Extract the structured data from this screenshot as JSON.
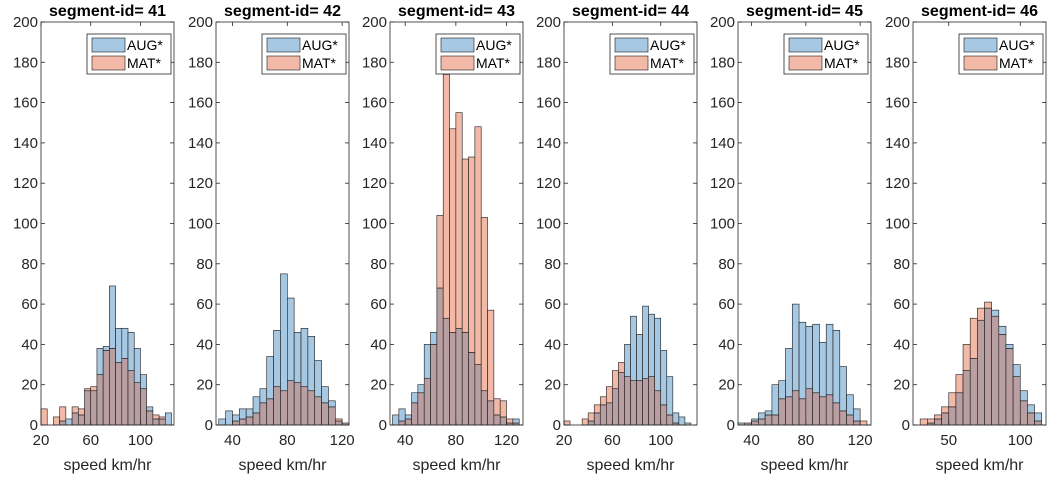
{
  "figure": {
    "colors": {
      "aug": "#a6c8e3",
      "mat": "#f2b9a6",
      "overlap": "#b99ea2",
      "edge": "#1a1a1a",
      "axis": "#262626"
    }
  },
  "chart_data": [
    {
      "type": "bar",
      "title": "segment-id= 41",
      "xlabel": "speed km/hr",
      "ylabel": "",
      "xlim": [
        20,
        127
      ],
      "ylim": [
        0,
        200
      ],
      "xticks": [
        20,
        60,
        100
      ],
      "yticks": [
        0,
        20,
        40,
        60,
        80,
        100,
        120,
        140,
        160,
        180,
        200
      ],
      "legend": "top-right",
      "bin_edges": [
        20,
        25,
        30,
        35,
        40,
        45,
        50,
        55,
        60,
        65,
        70,
        75,
        80,
        85,
        90,
        95,
        100,
        105,
        110,
        115,
        120,
        125
      ],
      "series": [
        {
          "name": "AUG*",
          "values": [
            0,
            0,
            0,
            2,
            3,
            6,
            5,
            17,
            17,
            38,
            39,
            69,
            48,
            48,
            46,
            38,
            25,
            9,
            3,
            3,
            6
          ]
        },
        {
          "name": "MAT*",
          "values": [
            8,
            0,
            4,
            9,
            0,
            9,
            8,
            18,
            19,
            25,
            37,
            38,
            31,
            33,
            27,
            21,
            18,
            7,
            5,
            4,
            0
          ]
        }
      ]
    },
    {
      "type": "bar",
      "title": "segment-id= 42",
      "xlabel": "speed km/hr",
      "ylabel": "",
      "xlim": [
        28,
        125
      ],
      "ylim": [
        0,
        200
      ],
      "xticks": [
        40,
        80,
        120
      ],
      "yticks": [
        0,
        20,
        40,
        60,
        80,
        100,
        120,
        140,
        160,
        180,
        200
      ],
      "legend": "top-right",
      "bin_edges": [
        30,
        35,
        40,
        45,
        50,
        55,
        60,
        65,
        70,
        75,
        80,
        85,
        90,
        95,
        100,
        105,
        110,
        115,
        120,
        125
      ],
      "series": [
        {
          "name": "AUG*",
          "values": [
            3,
            7,
            5,
            8,
            8,
            14,
            18,
            34,
            47,
            75,
            63,
            46,
            48,
            44,
            32,
            19,
            12,
            2,
            1
          ]
        },
        {
          "name": "MAT*",
          "values": [
            0,
            0,
            2,
            3,
            4,
            6,
            11,
            13,
            19,
            17,
            22,
            21,
            19,
            17,
            14,
            11,
            9,
            3,
            1
          ]
        }
      ]
    },
    {
      "type": "bar",
      "title": "segment-id= 43",
      "xlabel": "speed km/hr",
      "ylabel": "",
      "xlim": [
        28,
        133
      ],
      "ylim": [
        0,
        200
      ],
      "xticks": [
        40,
        80,
        120
      ],
      "yticks": [
        0,
        20,
        40,
        60,
        80,
        100,
        120,
        140,
        160,
        180,
        200
      ],
      "legend": "top-right",
      "bin_edges": [
        30,
        35,
        40,
        45,
        50,
        55,
        60,
        65,
        70,
        75,
        80,
        85,
        90,
        95,
        100,
        105,
        110,
        115,
        120,
        125,
        130
      ],
      "series": [
        {
          "name": "AUG*",
          "values": [
            5,
            8,
            5,
            16,
            20,
            40,
            46,
            68,
            53,
            46,
            48,
            46,
            36,
            30,
            17,
            12,
            5,
            4,
            1,
            3
          ]
        },
        {
          "name": "MAT*",
          "values": [
            0,
            2,
            3,
            11,
            16,
            23,
            40,
            104,
            174,
            147,
            155,
            132,
            133,
            148,
            103,
            57,
            13,
            12,
            3,
            1
          ]
        }
      ]
    },
    {
      "type": "bar",
      "title": "segment-id= 44",
      "xlabel": "speed km/hr",
      "ylabel": "",
      "xlim": [
        20,
        130
      ],
      "ylim": [
        0,
        200
      ],
      "xticks": [
        20,
        60,
        100
      ],
      "yticks": [
        0,
        20,
        40,
        60,
        80,
        100,
        120,
        140,
        160,
        180,
        200
      ],
      "legend": "top-right",
      "bin_edges": [
        20,
        25,
        30,
        35,
        40,
        45,
        50,
        55,
        60,
        65,
        70,
        75,
        80,
        85,
        90,
        95,
        100,
        105,
        110,
        115,
        120,
        125
      ],
      "series": [
        {
          "name": "AUG*",
          "values": [
            0,
            0,
            0,
            0,
            2,
            6,
            10,
            11,
            18,
            26,
            40,
            54,
            45,
            59,
            55,
            53,
            37,
            24,
            6,
            4,
            1
          ]
        },
        {
          "name": "MAT*",
          "values": [
            2,
            0,
            0,
            3,
            6,
            10,
            14,
            19,
            27,
            31,
            24,
            22,
            22,
            23,
            24,
            17,
            10,
            5,
            1,
            0,
            0
          ]
        }
      ]
    },
    {
      "type": "bar",
      "title": "segment-id= 45",
      "xlabel": "speed km/hr",
      "ylabel": "",
      "xlim": [
        30,
        128
      ],
      "ylim": [
        0,
        200
      ],
      "xticks": [
        40,
        80,
        120
      ],
      "yticks": [
        0,
        20,
        40,
        60,
        80,
        100,
        120,
        140,
        160,
        180,
        200
      ],
      "legend": "top-right",
      "bin_edges": [
        30,
        35,
        40,
        45,
        50,
        55,
        60,
        65,
        70,
        75,
        80,
        85,
        90,
        95,
        100,
        105,
        110,
        115,
        120,
        125
      ],
      "series": [
        {
          "name": "AUG*",
          "values": [
            1,
            1,
            3,
            6,
            7,
            20,
            22,
            38,
            60,
            51,
            49,
            50,
            41,
            50,
            47,
            29,
            15,
            8,
            0
          ]
        },
        {
          "name": "MAT*",
          "values": [
            0,
            1,
            2,
            3,
            5,
            5,
            13,
            14,
            17,
            13,
            18,
            16,
            14,
            15,
            11,
            7,
            5,
            2,
            2
          ]
        }
      ]
    },
    {
      "type": "bar",
      "title": "segment-id= 46",
      "xlabel": "speed km/hr",
      "ylabel": "",
      "xlim": [
        25,
        118
      ],
      "ylim": [
        0,
        200
      ],
      "xticks": [
        50,
        100
      ],
      "yticks": [
        0,
        20,
        40,
        60,
        80,
        100,
        120,
        140,
        160,
        180,
        200
      ],
      "legend": "top-right",
      "bin_edges": [
        30,
        35,
        40,
        45,
        50,
        55,
        60,
        65,
        70,
        75,
        80,
        85,
        90,
        95,
        100,
        105,
        110,
        115
      ],
      "series": [
        {
          "name": "AUG*",
          "values": [
            0,
            1,
            3,
            6,
            9,
            16,
            27,
            33,
            52,
            58,
            57,
            49,
            40,
            30,
            17,
            10,
            6
          ]
        },
        {
          "name": "MAT*",
          "values": [
            3,
            3,
            5,
            9,
            16,
            25,
            40,
            53,
            58,
            61,
            54,
            45,
            38,
            24,
            12,
            6,
            2
          ]
        }
      ]
    }
  ]
}
